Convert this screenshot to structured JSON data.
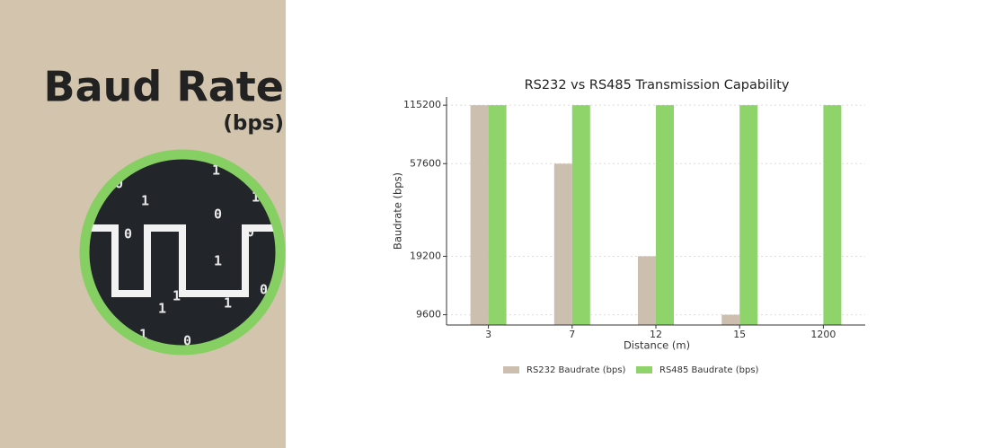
{
  "panel": {
    "title": "Baud Rate",
    "unit": "(bps)",
    "digits": [
      "0",
      "1",
      "1",
      "0",
      "0",
      "0",
      "1",
      "1",
      "0",
      "1",
      "1",
      "1",
      "0",
      "1"
    ]
  },
  "chart_data": {
    "type": "bar",
    "title": "RS232 vs RS485 Transmission Capability",
    "x_label": "Distance (m)",
    "y_label": "Baudrate (bps)",
    "categories": [
      "3",
      "7",
      "12",
      "15",
      "1200"
    ],
    "series": [
      {
        "name": "RS232 Baudrate (bps)",
        "color": "#cdbfb0",
        "values": [
          115200,
          57600,
          19200,
          9600,
          null
        ]
      },
      {
        "name": "RS485 Baudrate (bps)",
        "color": "#8ed46a",
        "values": [
          115200,
          115200,
          115200,
          115200,
          115200
        ]
      }
    ],
    "ylim": [
      8500,
      127000
    ],
    "yticks": [
      9600,
      19200,
      57600,
      115200
    ],
    "log_scale": true,
    "grid": true,
    "legend": "bottom"
  }
}
